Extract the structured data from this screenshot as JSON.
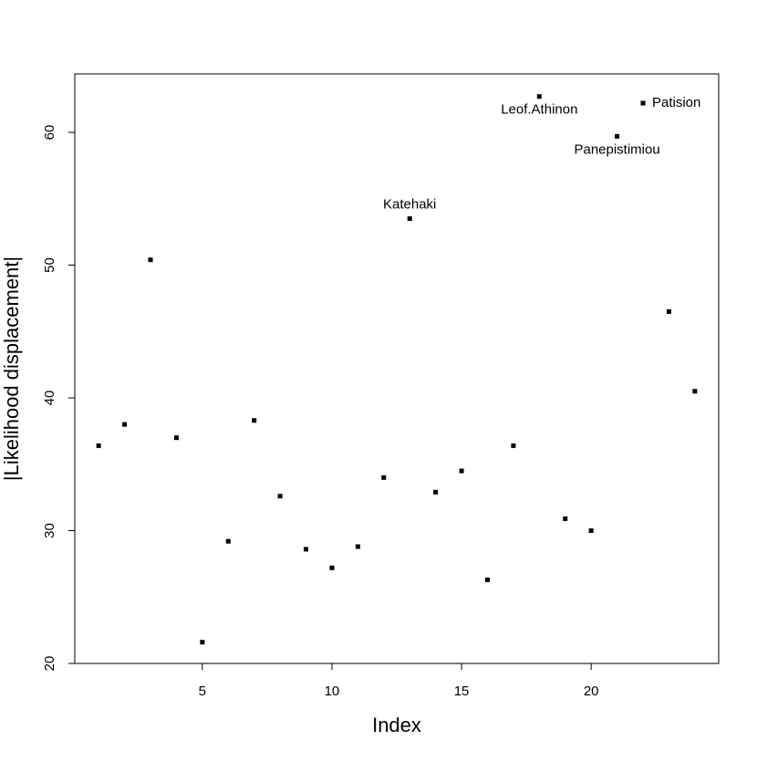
{
  "chart_data": {
    "type": "scatter",
    "xlabel": "Index",
    "ylabel": "|Likelihood displacement|",
    "x": [
      1,
      2,
      3,
      4,
      5,
      6,
      7,
      8,
      9,
      10,
      11,
      12,
      13,
      14,
      15,
      16,
      17,
      18,
      19,
      20,
      21,
      22,
      23,
      24
    ],
    "values": [
      36.4,
      38.0,
      50.4,
      37.0,
      21.6,
      29.2,
      38.3,
      32.6,
      28.6,
      27.2,
      28.8,
      34.0,
      53.5,
      32.9,
      34.5,
      26.3,
      36.4,
      62.7,
      30.9,
      30.0,
      59.7,
      62.2,
      46.5,
      40.5
    ],
    "point_labels": [
      null,
      null,
      null,
      null,
      null,
      null,
      null,
      null,
      null,
      null,
      null,
      null,
      "Katehaki",
      null,
      null,
      null,
      null,
      "Leof.Athinon",
      null,
      null,
      "Panepistimiou",
      "Patision",
      null,
      null
    ],
    "color": "#000000",
    "xlim": [
      0.08,
      24.92
    ],
    "ylim": [
      20,
      64.4
    ],
    "xticks": [
      5,
      10,
      15,
      20
    ],
    "yticks": [
      20,
      30,
      40,
      50,
      60
    ],
    "grid": false
  }
}
